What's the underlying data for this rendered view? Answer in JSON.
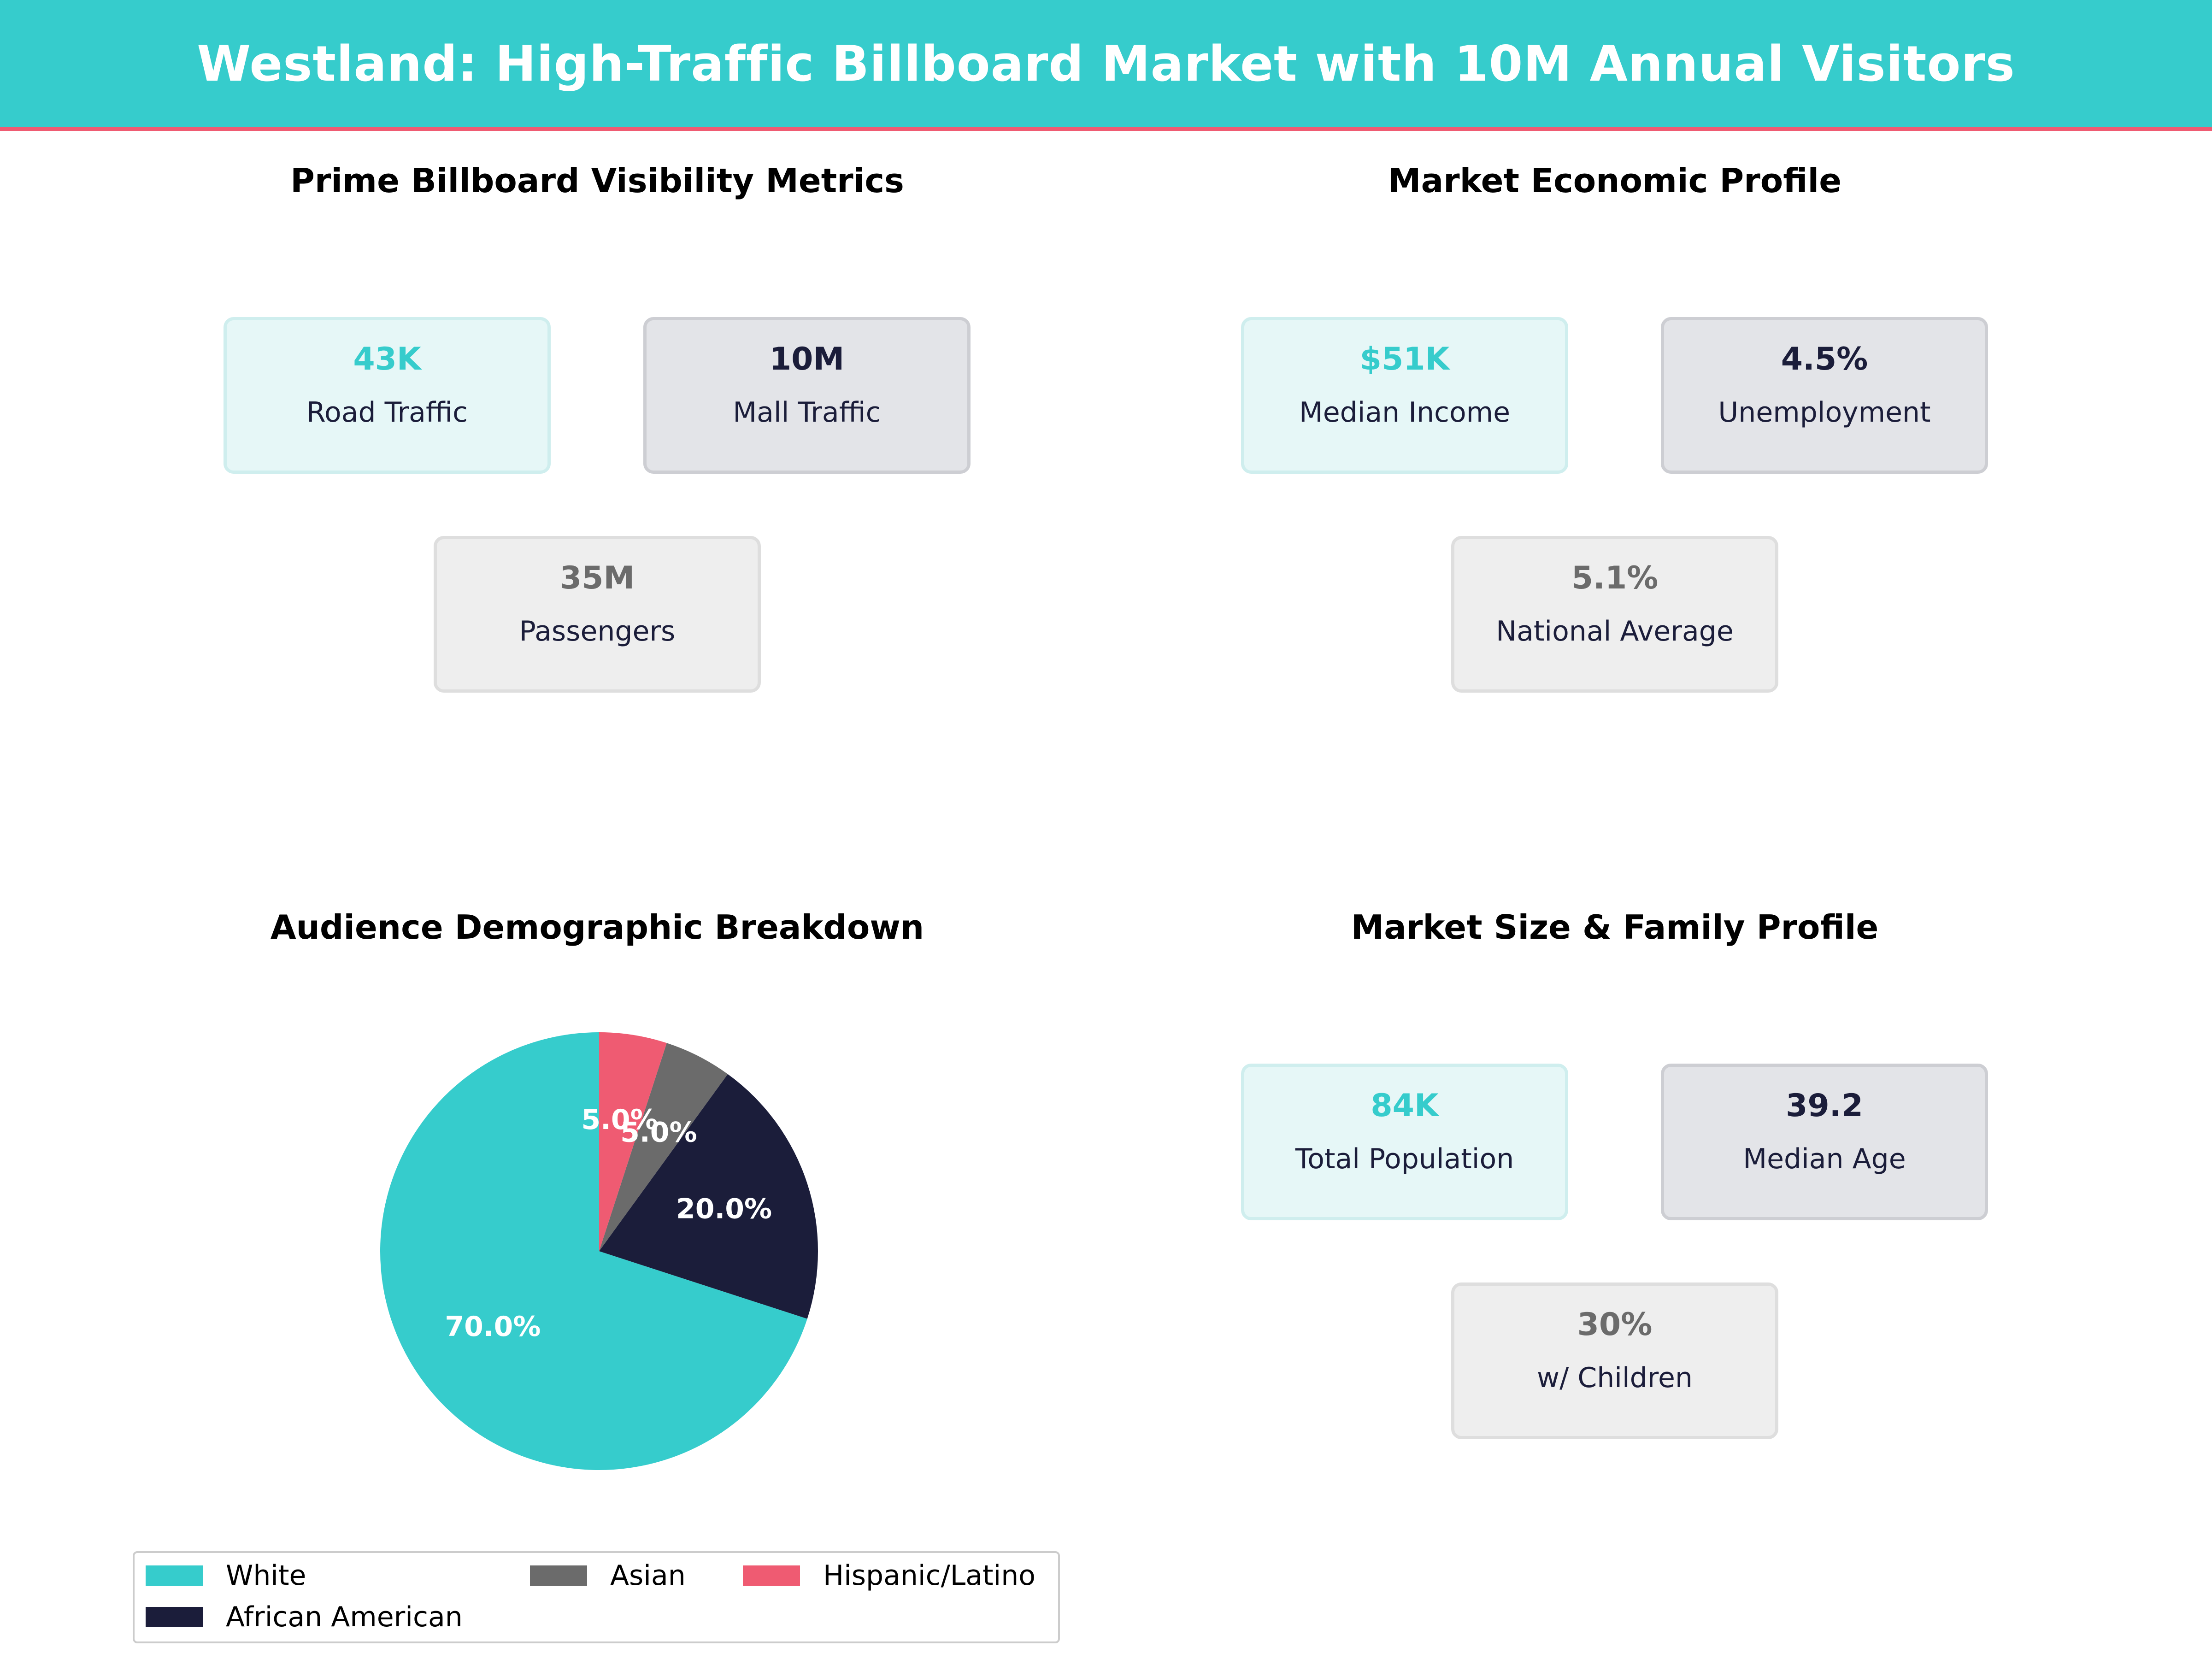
{
  "header": {
    "title": "Westland: High-Traffic Billboard Market with 10M Annual Visitors"
  },
  "colors": {
    "teal": "#36cccc",
    "navy": "#1b1d3a",
    "gray": "#6b6b6b",
    "pink": "#ef5b72"
  },
  "panels": {
    "visibility": {
      "title": "Prime Billboard Visibility Metrics",
      "cards": [
        {
          "value": "43K",
          "label": "Road Traffic"
        },
        {
          "value": "10M",
          "label": "Mall Traffic"
        },
        {
          "value": "35M",
          "label": "Passengers"
        }
      ]
    },
    "economic": {
      "title": "Market Economic Profile",
      "cards": [
        {
          "value": "$51K",
          "label": "Median Income"
        },
        {
          "value": "4.5%",
          "label": "Unemployment"
        },
        {
          "value": "5.1%",
          "label": "National Average"
        }
      ]
    },
    "demographic": {
      "title": "Audience Demographic Breakdown"
    },
    "market": {
      "title": "Market Size & Family Profile",
      "cards": [
        {
          "value": "84K",
          "label": "Total Population"
        },
        {
          "value": "39.2",
          "label": "Median Age"
        },
        {
          "value": "30%",
          "label": "w/ Children"
        }
      ]
    }
  },
  "chart_data": {
    "type": "pie",
    "title": "Audience Demographic Breakdown",
    "slices": [
      {
        "label": "White",
        "value": 70.0,
        "display": "70.0%",
        "color": "#36cccc"
      },
      {
        "label": "African American",
        "value": 20.0,
        "display": "20.0%",
        "color": "#1b1d3a"
      },
      {
        "label": "Asian",
        "value": 5.0,
        "display": "5.0%",
        "color": "#6b6b6b"
      },
      {
        "label": "Hispanic/Latino",
        "value": 5.0,
        "display": "5.0%",
        "color": "#ef5b72"
      }
    ],
    "start": "top",
    "direction": "counterclockwise",
    "legend_position": "bottom",
    "legend_order": [
      "White",
      "African American",
      "Asian",
      "Hispanic/Latino"
    ]
  }
}
